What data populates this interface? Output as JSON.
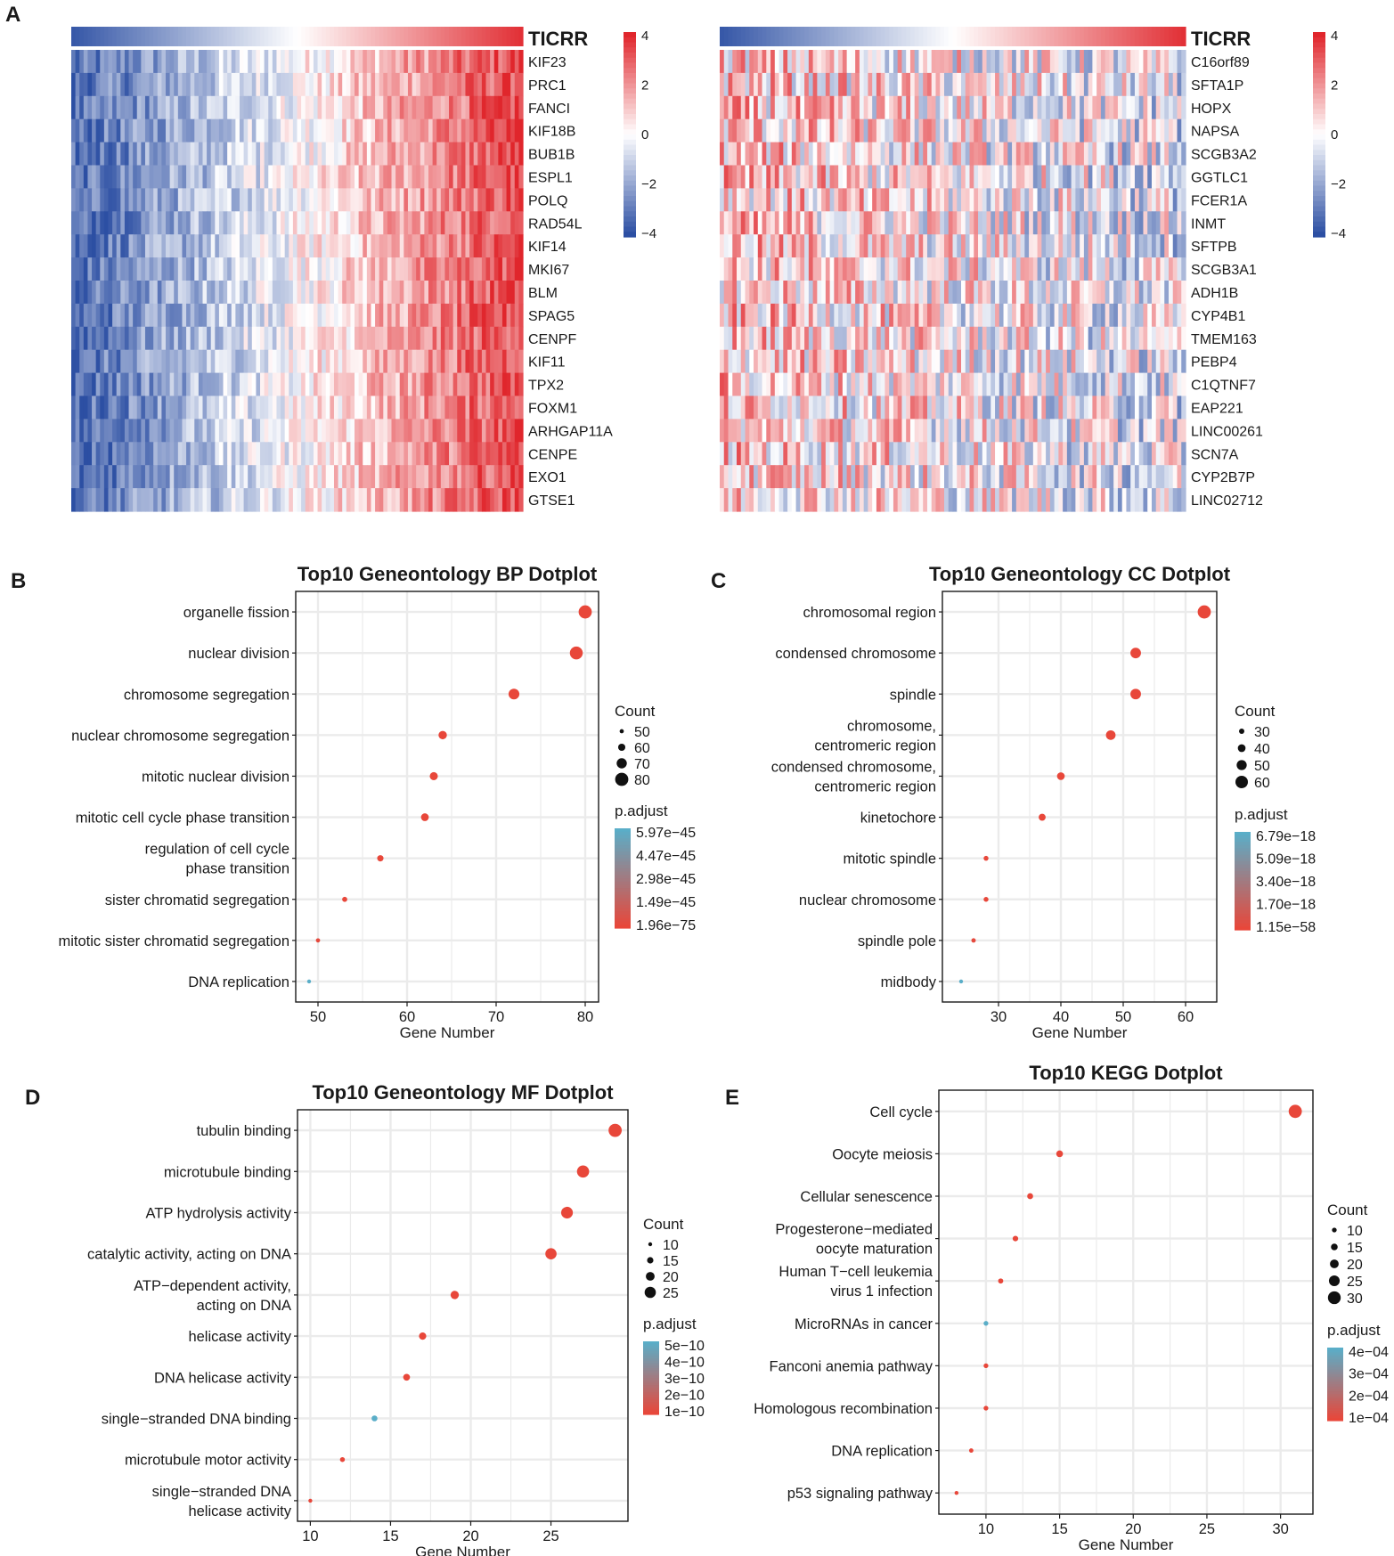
{
  "panel_labels": {
    "a": "A",
    "b": "B",
    "c": "C",
    "d": "D",
    "e": "E"
  },
  "colors": {
    "heat_low": "#2c4fa3",
    "heat_mid": "#ffffff",
    "heat_high": "#e0262c",
    "padj_low": "#e8473a",
    "padj_high": "#5aaec8",
    "dot_default": "#e2574a",
    "grid": "#ebebeb",
    "axis": "#1a1a1a"
  },
  "chart_data": [
    {
      "id": "A_left",
      "type": "heatmap",
      "annotation_label": "TICRR",
      "rows": [
        "KIF23",
        "PRC1",
        "FANCI",
        "KIF18B",
        "BUB1B",
        "ESPL1",
        "POLQ",
        "RAD54L",
        "KIF14",
        "MKI67",
        "BLM",
        "SPAG5",
        "CENPF",
        "KIF11",
        "TPX2",
        "FOXM1",
        "ARHGAP11A",
        "CENPE",
        "EXO1",
        "GTSE1"
      ],
      "correlation": "positive",
      "colorbar_ticks": [
        "4",
        "2",
        "0",
        "−2",
        "−4"
      ],
      "colorbar_range": [
        -4,
        4
      ]
    },
    {
      "id": "A_right",
      "type": "heatmap",
      "annotation_label": "TICRR",
      "rows": [
        "C16orf89",
        "SFTA1P",
        "HOPX",
        "NAPSA",
        "SCGB3A2",
        "GGTLC1",
        "FCER1A",
        "INMT",
        "SFTPB",
        "SCGB3A1",
        "ADH1B",
        "CYP4B1",
        "TMEM163",
        "PEBP4",
        "C1QTNF7",
        "EAP221",
        "LINC00261",
        "SCN7A",
        "CYP2B7P",
        "LINC02712"
      ],
      "correlation": "negative",
      "colorbar_ticks": [
        "4",
        "2",
        "0",
        "−2",
        "−4"
      ],
      "colorbar_range": [
        -4,
        4
      ]
    },
    {
      "id": "B",
      "type": "scatter",
      "title": "Top10 Geneontology BP Dotplot",
      "xlabel": "Gene Number",
      "xlim": [
        47.5,
        81.5
      ],
      "xticks": [
        50,
        60,
        70,
        80
      ],
      "categories": [
        "organelle fission",
        "nuclear division",
        "chromosome segregation",
        "nuclear chromosome segregation",
        "mitotic nuclear division",
        "mitotic cell cycle phase transition",
        "regulation of cell cycle\nphase transition",
        "sister chromatid segregation",
        "mitotic sister chromatid segregation",
        "DNA replication"
      ],
      "values": [
        80,
        79,
        72,
        64,
        63,
        62,
        57,
        53,
        50,
        49
      ],
      "counts": [
        80,
        79,
        72,
        64,
        63,
        62,
        57,
        53,
        50,
        49
      ],
      "padj_norm": [
        0,
        0,
        0,
        0,
        0,
        0,
        0,
        0,
        0.02,
        1
      ],
      "count_legend": {
        "title": "Count",
        "values": [
          50,
          60,
          70,
          80
        ],
        "labels": [
          "50",
          "60",
          "70",
          "80"
        ]
      },
      "padj_legend": {
        "title": "p.adjust",
        "labels": [
          "5.97e−45",
          "4.47e−45",
          "2.98e−45",
          "1.49e−45",
          "1.96e−75"
        ]
      }
    },
    {
      "id": "C",
      "type": "scatter",
      "title": "Top10 Geneontology CC Dotplot",
      "xlabel": "Gene Number",
      "xlim": [
        21,
        65
      ],
      "xticks": [
        30,
        40,
        50,
        60
      ],
      "categories": [
        "chromosomal region",
        "condensed chromosome",
        "spindle",
        "chromosome,\ncentromeric region",
        "condensed chromosome,\ncentromeric region",
        "kinetochore",
        "mitotic spindle",
        "nuclear chromosome",
        "spindle pole",
        "midbody"
      ],
      "values": [
        63,
        52,
        52,
        48,
        40,
        37,
        28,
        28,
        26,
        24
      ],
      "counts": [
        63,
        52,
        52,
        48,
        40,
        37,
        28,
        28,
        26,
        24
      ],
      "padj_norm": [
        0,
        0,
        0,
        0,
        0,
        0,
        0,
        0,
        0.02,
        1
      ],
      "count_legend": {
        "title": "Count",
        "values": [
          30,
          40,
          50,
          60
        ],
        "labels": [
          "30",
          "40",
          "50",
          "60"
        ]
      },
      "padj_legend": {
        "title": "p.adjust",
        "labels": [
          "6.79e−18",
          "5.09e−18",
          "3.40e−18",
          "1.70e−18",
          "1.15e−58"
        ]
      }
    },
    {
      "id": "D",
      "type": "scatter",
      "title": "Top10 Geneontology MF Dotplot",
      "xlabel": "Gene Number",
      "xlim": [
        9.2,
        29.8
      ],
      "xticks": [
        10,
        15,
        20,
        25
      ],
      "categories": [
        "tubulin binding",
        "microtubule binding",
        "ATP hydrolysis activity",
        "catalytic activity, acting on DNA",
        "ATP−dependent activity,\nacting on DNA",
        "helicase activity",
        "DNA helicase activity",
        "single−stranded DNA binding",
        "microtubule motor activity",
        "single−stranded DNA\nhelicase activity"
      ],
      "values": [
        29,
        27,
        26,
        25,
        19,
        17,
        16,
        14,
        12,
        10
      ],
      "counts": [
        29,
        27,
        26,
        25,
        19,
        17,
        16,
        14,
        12,
        10
      ],
      "padj_norm": [
        0,
        0,
        0,
        0,
        0,
        0,
        0,
        1,
        0,
        0
      ],
      "count_legend": {
        "title": "Count",
        "values": [
          10,
          15,
          20,
          25
        ],
        "labels": [
          "10",
          "15",
          "20",
          "25"
        ]
      },
      "padj_legend": {
        "title": "p.adjust",
        "labels": [
          "5e−10",
          "4e−10",
          "3e−10",
          "2e−10",
          "1e−10"
        ]
      }
    },
    {
      "id": "E",
      "type": "scatter",
      "title": "Top10 KEGG Dotplot",
      "xlabel": "Gene Number",
      "xlim": [
        6.8,
        32.2
      ],
      "xticks": [
        10,
        15,
        20,
        25,
        30
      ],
      "categories": [
        "Cell cycle",
        "Oocyte meiosis",
        "Cellular senescence",
        "Progesterone−mediated\noocyte maturation",
        "Human T−cell leukemia\nvirus 1 infection",
        "MicroRNAs in cancer",
        "Fanconi anemia pathway",
        "Homologous recombination",
        "DNA replication",
        "p53 signaling pathway"
      ],
      "values": [
        31,
        15,
        13,
        12,
        11,
        10,
        10,
        10,
        9,
        8
      ],
      "counts": [
        31,
        15,
        13,
        12,
        11,
        10,
        10,
        10,
        9,
        8
      ],
      "padj_norm": [
        0,
        0,
        0,
        0,
        0,
        1,
        0,
        0,
        0,
        0
      ],
      "count_legend": {
        "title": "Count",
        "values": [
          10,
          15,
          20,
          25,
          30
        ],
        "labels": [
          "10",
          "15",
          "20",
          "25",
          "30"
        ]
      },
      "padj_legend": {
        "title": "p.adjust",
        "labels": [
          "4e−04",
          "3e−04",
          "2e−04",
          "1e−04"
        ]
      }
    }
  ]
}
